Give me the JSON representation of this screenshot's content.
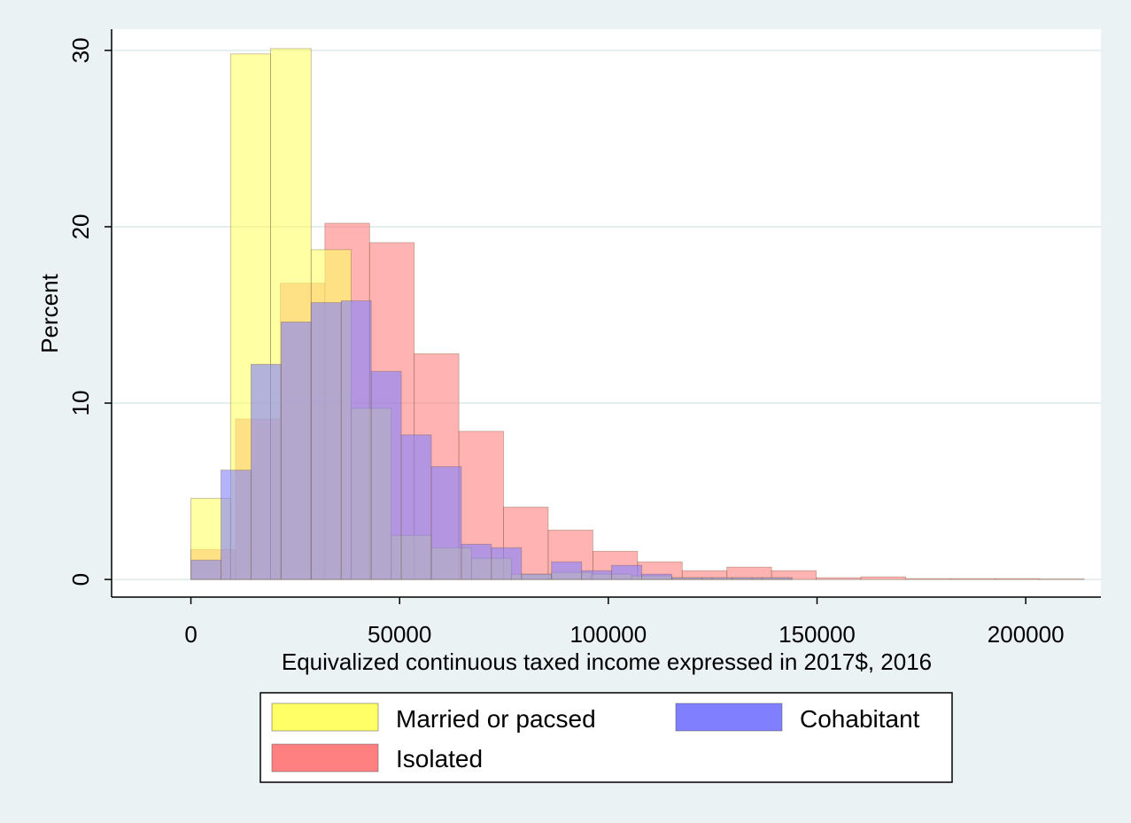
{
  "chart_data": {
    "type": "bar",
    "xlabel": "Equivalized continuous taxed income expressed in 2017$, 2016",
    "ylabel": "Percent",
    "xlim": [
      -19000,
      218000
    ],
    "ylim": [
      -1,
      31.2
    ],
    "x_ticks": [
      0,
      50000,
      100000,
      150000,
      200000
    ],
    "y_ticks": [
      0,
      10,
      20,
      30
    ],
    "grid": "horizontal",
    "legend_position": "bottom",
    "series": [
      {
        "name": "Isolated",
        "color": "#ff8080",
        "bins": [
          {
            "x0": 0,
            "x1": 10700,
            "value": 1.7
          },
          {
            "x0": 10700,
            "x1": 21400,
            "value": 9.1
          },
          {
            "x0": 21400,
            "x1": 32100,
            "value": 16.8
          },
          {
            "x0": 32100,
            "x1": 42800,
            "value": 20.2
          },
          {
            "x0": 42800,
            "x1": 53500,
            "value": 19.1
          },
          {
            "x0": 53500,
            "x1": 64200,
            "value": 12.8
          },
          {
            "x0": 64200,
            "x1": 74900,
            "value": 8.4
          },
          {
            "x0": 74900,
            "x1": 85600,
            "value": 4.1
          },
          {
            "x0": 85600,
            "x1": 96300,
            "value": 2.8
          },
          {
            "x0": 96300,
            "x1": 107000,
            "value": 1.6
          },
          {
            "x0": 107000,
            "x1": 117700,
            "value": 1.0
          },
          {
            "x0": 117700,
            "x1": 128400,
            "value": 0.5
          },
          {
            "x0": 128400,
            "x1": 139100,
            "value": 0.7
          },
          {
            "x0": 139100,
            "x1": 149800,
            "value": 0.5
          },
          {
            "x0": 149800,
            "x1": 160500,
            "value": 0.1
          },
          {
            "x0": 160500,
            "x1": 171200,
            "value": 0.15
          },
          {
            "x0": 171200,
            "x1": 181900,
            "value": 0.05
          },
          {
            "x0": 181900,
            "x1": 192600,
            "value": 0.05
          },
          {
            "x0": 192600,
            "x1": 203300,
            "value": 0.05
          },
          {
            "x0": 203300,
            "x1": 214000,
            "value": 0.03
          }
        ]
      },
      {
        "name": "Married or pacsed",
        "color": "#ffff66",
        "bins": [
          {
            "x0": 0,
            "x1": 9500,
            "value": 4.6
          },
          {
            "x0": 9500,
            "x1": 19100,
            "value": 29.8
          },
          {
            "x0": 19100,
            "x1": 28800,
            "value": 30.1
          },
          {
            "x0": 28800,
            "x1": 38400,
            "value": 18.7
          },
          {
            "x0": 38400,
            "x1": 48000,
            "value": 9.7
          },
          {
            "x0": 48000,
            "x1": 57600,
            "value": 2.5
          },
          {
            "x0": 57600,
            "x1": 67200,
            "value": 1.8
          },
          {
            "x0": 67200,
            "x1": 76800,
            "value": 1.2
          },
          {
            "x0": 76800,
            "x1": 86400,
            "value": 0.3
          },
          {
            "x0": 86400,
            "x1": 96000,
            "value": 0.4
          },
          {
            "x0": 96000,
            "x1": 105600,
            "value": 0.3
          },
          {
            "x0": 105600,
            "x1": 115200,
            "value": 0.2
          },
          {
            "x0": 115200,
            "x1": 124800,
            "value": 0.1
          },
          {
            "x0": 124800,
            "x1": 134400,
            "value": 0.1
          },
          {
            "x0": 134400,
            "x1": 144000,
            "value": 0.1
          }
        ]
      },
      {
        "name": "Cohabitant",
        "color": "#8080ff",
        "bins": [
          {
            "x0": 0,
            "x1": 7200,
            "value": 1.1
          },
          {
            "x0": 7200,
            "x1": 14400,
            "value": 6.2
          },
          {
            "x0": 14400,
            "x1": 21600,
            "value": 12.2
          },
          {
            "x0": 21600,
            "x1": 28800,
            "value": 14.6
          },
          {
            "x0": 28800,
            "x1": 36000,
            "value": 15.7
          },
          {
            "x0": 36000,
            "x1": 43200,
            "value": 15.8
          },
          {
            "x0": 43200,
            "x1": 50400,
            "value": 11.8
          },
          {
            "x0": 50400,
            "x1": 57600,
            "value": 8.2
          },
          {
            "x0": 57600,
            "x1": 64800,
            "value": 6.4
          },
          {
            "x0": 64800,
            "x1": 72000,
            "value": 2.0
          },
          {
            "x0": 72000,
            "x1": 79200,
            "value": 1.8
          },
          {
            "x0": 79200,
            "x1": 86400,
            "value": 0.3
          },
          {
            "x0": 86400,
            "x1": 93600,
            "value": 1.0
          },
          {
            "x0": 93600,
            "x1": 100800,
            "value": 0.5
          },
          {
            "x0": 100800,
            "x1": 108000,
            "value": 0.8
          },
          {
            "x0": 108000,
            "x1": 115200,
            "value": 0.3
          },
          {
            "x0": 115200,
            "x1": 122400,
            "value": 0.1
          },
          {
            "x0": 122400,
            "x1": 129600,
            "value": 0.1
          },
          {
            "x0": 129600,
            "x1": 136800,
            "value": 0.1
          },
          {
            "x0": 136800,
            "x1": 144000,
            "value": 0.1
          }
        ]
      }
    ],
    "legend": [
      {
        "label": "Married or pacsed",
        "color": "#ffff66"
      },
      {
        "label": "Cohabitant",
        "color": "#8080ff"
      },
      {
        "label": "Isolated",
        "color": "#ff8080"
      }
    ]
  }
}
